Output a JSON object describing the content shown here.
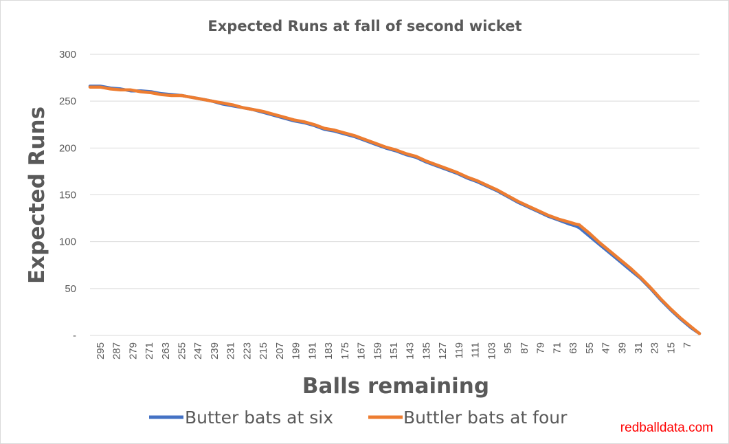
{
  "chart_data": {
    "type": "line",
    "title": "Expected Runs at fall of second wicket",
    "xlabel": "Balls remaining",
    "ylabel": "Expected Runs",
    "ylim": [
      0,
      300
    ],
    "yticks": [
      {
        "value": 0,
        "label": "-"
      },
      {
        "value": 50,
        "label": "50"
      },
      {
        "value": 100,
        "label": "100"
      },
      {
        "value": 150,
        "label": "150"
      },
      {
        "value": 200,
        "label": "200"
      },
      {
        "value": 250,
        "label": "250"
      },
      {
        "value": 300,
        "label": "300"
      }
    ],
    "xrange": [
      300,
      1
    ],
    "xticks": [
      295,
      287,
      279,
      271,
      263,
      255,
      247,
      239,
      231,
      223,
      215,
      207,
      199,
      191,
      183,
      175,
      167,
      159,
      151,
      143,
      135,
      127,
      119,
      111,
      103,
      95,
      87,
      79,
      71,
      63,
      55,
      47,
      39,
      31,
      23,
      15,
      7
    ],
    "grid": true,
    "legend_position": "bottom",
    "series": [
      {
        "name": "Butter bats at six",
        "color": "#4472c4",
        "x": [
          300,
          295,
          290,
          285,
          280,
          275,
          270,
          265,
          260,
          255,
          250,
          245,
          240,
          235,
          230,
          225,
          220,
          215,
          210,
          205,
          200,
          195,
          190,
          185,
          180,
          175,
          170,
          165,
          160,
          155,
          150,
          145,
          140,
          135,
          130,
          125,
          120,
          115,
          110,
          105,
          100,
          95,
          90,
          85,
          80,
          75,
          70,
          65,
          62,
          60,
          55,
          50,
          45,
          40,
          35,
          30,
          25,
          20,
          15,
          10,
          5,
          1
        ],
        "y": [
          266,
          266,
          264,
          263,
          261,
          261,
          260,
          258,
          257,
          256,
          254,
          252,
          250,
          247,
          245,
          243,
          241,
          238,
          235,
          232,
          229,
          227,
          224,
          220,
          218,
          215,
          212,
          208,
          204,
          200,
          197,
          193,
          190,
          185,
          181,
          177,
          173,
          168,
          164,
          159,
          154,
          148,
          142,
          137,
          132,
          127,
          123,
          119,
          117,
          115,
          106,
          97,
          88,
          79,
          70,
          61,
          50,
          38,
          27,
          17,
          8,
          2
        ]
      },
      {
        "name": "Buttler bats at four",
        "color": "#ed7d31",
        "x": [
          300,
          295,
          290,
          285,
          280,
          275,
          270,
          265,
          260,
          255,
          250,
          245,
          240,
          235,
          230,
          225,
          220,
          215,
          210,
          205,
          200,
          195,
          190,
          185,
          180,
          175,
          170,
          165,
          160,
          155,
          150,
          145,
          140,
          135,
          130,
          125,
          120,
          115,
          110,
          105,
          100,
          95,
          90,
          85,
          80,
          75,
          70,
          65,
          62,
          60,
          55,
          50,
          45,
          40,
          35,
          30,
          25,
          20,
          15,
          10,
          5,
          1
        ],
        "y": [
          265,
          265,
          263,
          262,
          262,
          260,
          259,
          257,
          256,
          256,
          254,
          252,
          250,
          248,
          246,
          243,
          241,
          239,
          236,
          233,
          230,
          228,
          225,
          221,
          219,
          216,
          213,
          209,
          205,
          201,
          198,
          194,
          191,
          186,
          182,
          178,
          174,
          169,
          165,
          160,
          155,
          149,
          143,
          138,
          133,
          128,
          124,
          121,
          119,
          118,
          109,
          99,
          90,
          81,
          72,
          62,
          51,
          39,
          28,
          18,
          9,
          2
        ]
      }
    ]
  },
  "watermark": "redballdata.com"
}
